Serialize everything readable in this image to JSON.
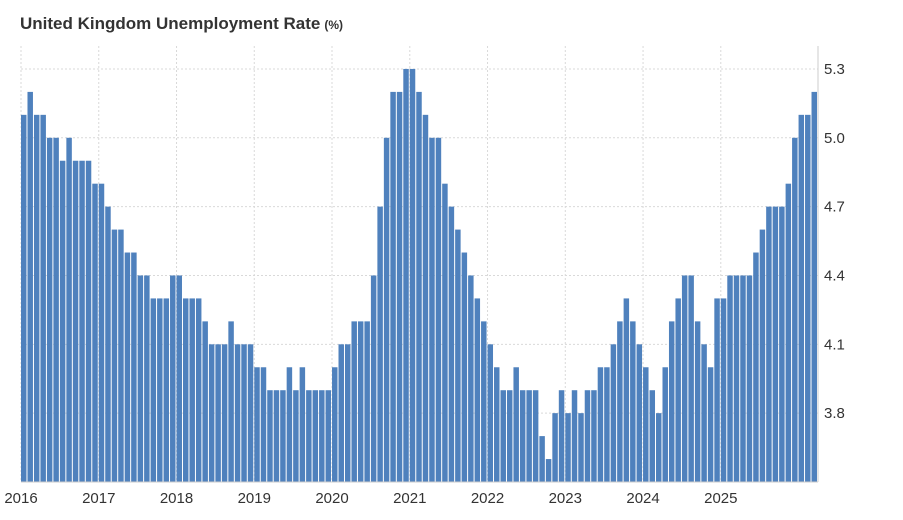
{
  "chart_data": {
    "type": "bar",
    "title": "United Kingdom Unemployment Rate",
    "unit": "(%)",
    "bar_color": "#4f81bd",
    "grid": true,
    "ylim": [
      3.5,
      5.4
    ],
    "y_ticks": [
      3.8,
      4.1,
      4.4,
      4.7,
      5.0,
      5.3
    ],
    "y_tick_labels": [
      "3.8",
      "4.1",
      "4.4",
      "4.7",
      "5.0",
      "5.3"
    ],
    "x_tick_labels": [
      "2016",
      "2017",
      "2018",
      "2019",
      "2020",
      "2021",
      "2022",
      "2023",
      "2024",
      "2025"
    ],
    "values": [
      5.1,
      5.2,
      5.1,
      5.1,
      5.0,
      5.0,
      4.9,
      5.0,
      4.9,
      4.9,
      4.9,
      4.8,
      4.8,
      4.7,
      4.6,
      4.6,
      4.5,
      4.5,
      4.4,
      4.4,
      4.3,
      4.3,
      4.3,
      4.4,
      4.4,
      4.3,
      4.3,
      4.3,
      4.2,
      4.1,
      4.1,
      4.1,
      4.2,
      4.1,
      4.1,
      4.1,
      4.0,
      4.0,
      3.9,
      3.9,
      3.9,
      4.0,
      3.9,
      4.0,
      3.9,
      3.9,
      3.9,
      3.9,
      4.0,
      4.1,
      4.1,
      4.2,
      4.2,
      4.2,
      4.4,
      4.7,
      5.0,
      5.2,
      5.2,
      5.3,
      5.3,
      5.2,
      5.1,
      5.0,
      5.0,
      4.8,
      4.7,
      4.6,
      4.5,
      4.4,
      4.3,
      4.2,
      4.1,
      4.0,
      3.9,
      3.9,
      4.0,
      3.9,
      3.9,
      3.9,
      3.7,
      3.6,
      3.8,
      3.9,
      3.8,
      3.9,
      3.8,
      3.9,
      3.9,
      4.0,
      4.0,
      4.1,
      4.2,
      4.3,
      4.2,
      4.1,
      4.0,
      3.9,
      3.8,
      4.0,
      4.2,
      4.3,
      4.4,
      4.4,
      4.2,
      4.1,
      4.0,
      4.3,
      4.3,
      4.4,
      4.4,
      4.4,
      4.4,
      4.5,
      4.6,
      4.7,
      4.7,
      4.7,
      4.8,
      5.0,
      5.1,
      5.1,
      5.2
    ]
  }
}
